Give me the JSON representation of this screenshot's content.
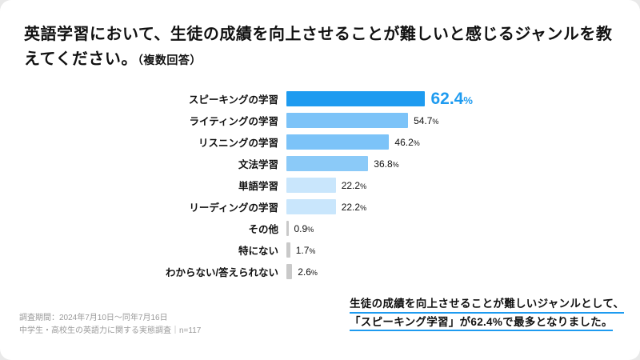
{
  "header": {
    "title": "英語学習において、生徒の成績を向上させることが難しいと感じるジャンルを教えてください。",
    "note": "（複数回答）"
  },
  "chart_data": {
    "type": "bar",
    "orientation": "horizontal",
    "title": "英語学習において、生徒の成績を向上させることが難しいと感じるジャンルを教えてください。（複数回答）",
    "categories": [
      "スピーキングの学習",
      "ライティングの学習",
      "リスニングの学習",
      "文法学習",
      "単語学習",
      "リーディングの学習",
      "その他",
      "特にない",
      "わからない/答えられない"
    ],
    "values": [
      62.4,
      54.7,
      46.2,
      36.8,
      22.2,
      22.2,
      0.9,
      1.7,
      2.6
    ],
    "unit": "%",
    "xlim": [
      0,
      70
    ],
    "grid": false,
    "legend": "none",
    "bar_colors": [
      "#1E9BF0",
      "#7CC3F8",
      "#7CC3F8",
      "#8BCAF8",
      "#C9E6FC",
      "#C9E6FC",
      "#C9C9C9",
      "#C9C9C9",
      "#C9C9C9"
    ],
    "highlight_value_color": "#1E9BF0",
    "value_color": "#111111"
  },
  "footer": {
    "line1": "調査期間：2024年7月10日〜同年7月16日",
    "line2": "中学生・高校生の英語力に関する実態調査｜n=117"
  },
  "annotation": {
    "line1": "生徒の成績を向上させることが難しいジャンルとして、",
    "line2": "「スピーキング学習」が62.4%で最多となりました。"
  },
  "colors": {
    "accent": "#1E9BF0",
    "underline": "#1E9BF0",
    "muted_bar": "#C9C9C9",
    "footer_text": "#9A9A9A"
  }
}
